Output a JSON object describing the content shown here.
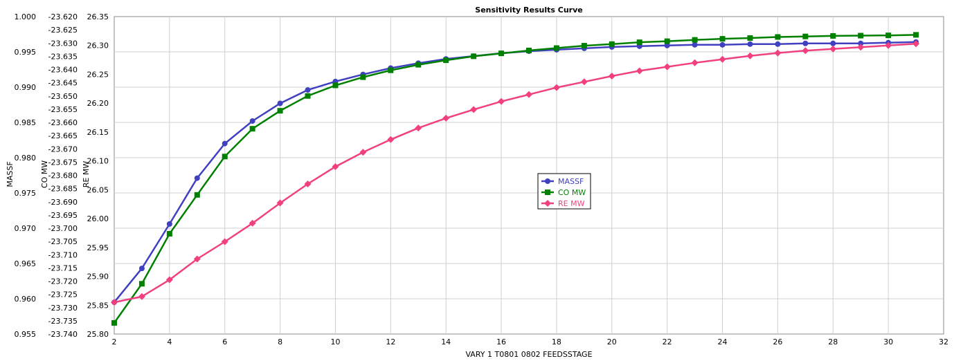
{
  "chart_data": {
    "type": "line",
    "title": "Sensitivity Results Curve",
    "xlabel": "VARY   1 T0801 0802 FEEDSSTAGE",
    "xlim": [
      2,
      32
    ],
    "x_ticks": [
      2,
      4,
      6,
      8,
      10,
      12,
      14,
      16,
      18,
      20,
      22,
      24,
      26,
      28,
      30,
      32
    ],
    "grid": true,
    "legend_position": "center",
    "x": [
      2,
      3,
      4,
      5,
      6,
      7,
      8,
      9,
      10,
      11,
      12,
      13,
      14,
      15,
      16,
      17,
      18,
      19,
      20,
      21,
      22,
      23,
      24,
      25,
      26,
      27,
      28,
      29,
      30,
      31
    ],
    "axes": [
      {
        "label": "MASSF",
        "ylim": [
          0.955,
          1.0
        ],
        "ticks": [
          "0.955",
          "0.960",
          "0.965",
          "0.970",
          "0.975",
          "0.980",
          "0.985",
          "0.990",
          "0.995",
          "1.000"
        ]
      },
      {
        "label": "CO MW",
        "ylim": [
          -23.74,
          -23.62
        ],
        "ticks": [
          "-23.740",
          "-23.735",
          "-23.730",
          "-23.725",
          "-23.720",
          "-23.715",
          "-23.710",
          "-23.705",
          "-23.700",
          "-23.695",
          "-23.690",
          "-23.685",
          "-23.680",
          "-23.675",
          "-23.670",
          "-23.665",
          "-23.660",
          "-23.655",
          "-23.650",
          "-23.645",
          "-23.640",
          "-23.635",
          "-23.630",
          "-23.625",
          "-23.620"
        ]
      },
      {
        "label": "RE MW",
        "ylim": [
          25.8,
          26.35
        ],
        "ticks": [
          "25.80",
          "25.85",
          "25.90",
          "25.95",
          "26.00",
          "26.05",
          "26.10",
          "26.15",
          "26.20",
          "26.25",
          "26.30",
          "26.35"
        ]
      }
    ],
    "series": [
      {
        "name": "MASSF",
        "axis": 0,
        "color": "#4040c0",
        "marker": "circle",
        "values": [
          0.9595,
          0.9643,
          0.9706,
          0.9771,
          0.982,
          0.9852,
          0.9877,
          0.9896,
          0.9908,
          0.9918,
          0.9927,
          0.9934,
          0.994,
          0.9944,
          0.9948,
          0.9951,
          0.9953,
          0.9955,
          0.9957,
          0.9958,
          0.9959,
          0.996,
          0.996,
          0.9961,
          0.9961,
          0.9962,
          0.9962,
          0.9962,
          0.9963,
          0.9964
        ]
      },
      {
        "name": "CO MW",
        "axis": 1,
        "color": "#008000",
        "marker": "square",
        "values": [
          -23.7358,
          -23.721,
          -23.7021,
          -23.6874,
          -23.6729,
          -23.6624,
          -23.6556,
          -23.65,
          -23.646,
          -23.6429,
          -23.6403,
          -23.6382,
          -23.6365,
          -23.635,
          -23.6339,
          -23.6328,
          -23.6319,
          -23.631,
          -23.6304,
          -23.6297,
          -23.6293,
          -23.6288,
          -23.6284,
          -23.6281,
          -23.6277,
          -23.6275,
          -23.6273,
          -23.6272,
          -23.6271,
          -23.6269
        ]
      },
      {
        "name": "RE MW",
        "axis": 2,
        "color": "#f04080",
        "marker": "diamond",
        "values": [
          25.855,
          25.865,
          25.894,
          25.93,
          25.96,
          25.992,
          26.027,
          26.06,
          26.09,
          26.115,
          26.137,
          26.157,
          26.174,
          26.189,
          26.203,
          26.215,
          26.227,
          26.237,
          26.247,
          26.256,
          26.263,
          26.27,
          26.276,
          26.282,
          26.287,
          26.291,
          26.294,
          26.297,
          26.3,
          26.303
        ]
      }
    ]
  }
}
